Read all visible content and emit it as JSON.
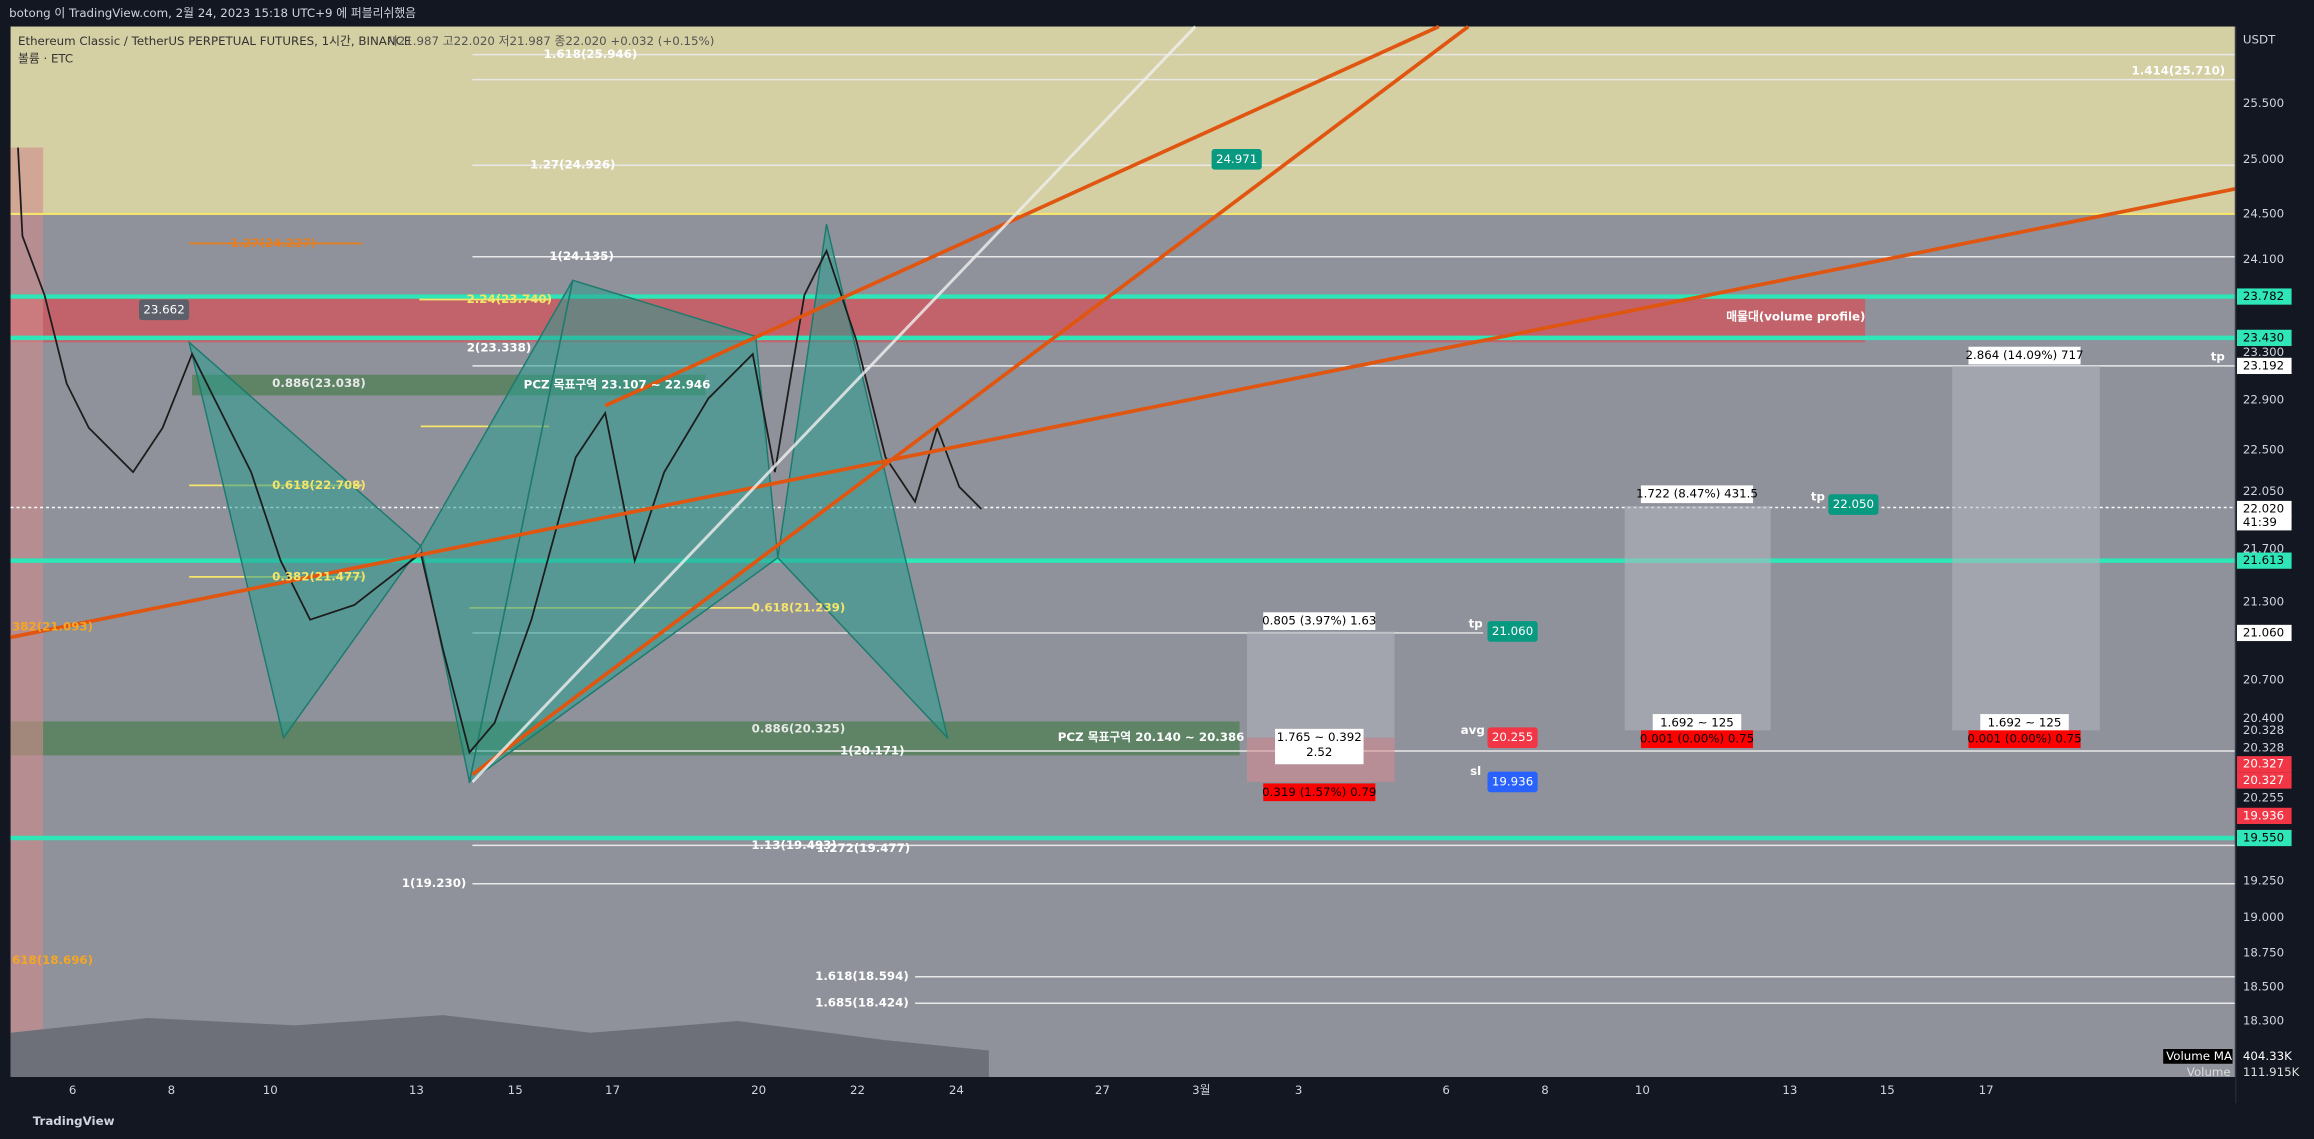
{
  "header": {
    "publisher": "botong 이 TradingView.com, 2월 24, 2023 15:18 UTC+9 에 퍼블리쉬했음"
  },
  "legend": {
    "symbol": "Ethereum Classic / TetherUS PERPETUAL FUTURES, 1시간, BINANCE",
    "ohlc": "시21.987 고22.020 저21.987 종22.020 +0.032 (+0.15%)",
    "volume": "볼륨 · ETC"
  },
  "price_axis": {
    "currency": "USDT",
    "labels": [
      "25.500",
      "25.000",
      "24.500",
      "24.100",
      "23.782",
      "23.430",
      "23.300",
      "23.192",
      "22.900",
      "22.500",
      "22.050",
      "22.020",
      "41:39",
      "21.700",
      "21.613",
      "21.300",
      "21.060",
      "20.700",
      "20.400",
      "20.328",
      "20.328",
      "20.327",
      "20.327",
      "20.255",
      "19.936",
      "19.550",
      "19.250",
      "19.000",
      "18.750",
      "18.500",
      "18.300"
    ]
  },
  "time_axis": {
    "labels": [
      "6",
      "8",
      "10",
      "13",
      "15",
      "17",
      "20",
      "22",
      "24",
      "27",
      "3월",
      "3",
      "6",
      "8",
      "10",
      "13",
      "15",
      "17"
    ]
  },
  "annotations": [
    "1.618(25.946)",
    "1.414(25.710)",
    "1.27(24.926)",
    "1(24.135)",
    "2(23.338)",
    "0.886(23.038)",
    "PCZ 목표구역 23.107 ~ 22.946",
    "0.618(22.708)",
    "0.382(21.477)",
    "0.618(21.239)",
    "0.886(20.325)",
    "PCZ 목표구역 20.140 ~ 20.386",
    "1(20.171)",
    "1.13(19.493)",
    "1.272(19.477)",
    "1(19.230)",
    "1.618(18.594)",
    "1.685(18.424)",
    "382(21.093)",
    "618(18.696)",
    "매물대(volume profile)",
    "1.27(24.227)",
    "2.24(23.740)",
    "tp",
    "tp",
    "tp",
    "avg",
    "sl"
  ],
  "tags": [
    "24.971",
    "23.662",
    "22.050",
    "21.060",
    "20.255",
    "19.936"
  ],
  "position_tools": [
    {
      "target": "0.805 (3.97%) 1.63",
      "ratio": [
        "1.765 ~ 0.392",
        "2.52"
      ],
      "stop": "0.319 (1.57%) 0.79"
    },
    {
      "target": "1.722 (8.47%) 431.5",
      "ratio": [
        "1.692 ~ 125"
      ],
      "stop": "0.001 (0.00%) 0.75"
    },
    {
      "target": "2.864 (14.09%) 717",
      "ratio": [
        "1.692 ~ 125"
      ],
      "stop": "0.001 (0.00%) 0.75"
    }
  ],
  "volume": {
    "ma_label": "Volume MA",
    "ma_value": "404.33K",
    "label": "Volume",
    "value": "111.915K"
  },
  "footer": {
    "brand": "TradingView"
  }
}
